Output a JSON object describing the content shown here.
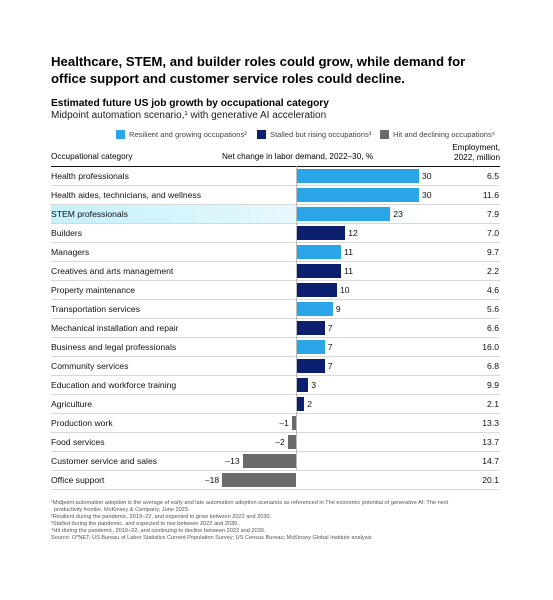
{
  "headline": "Healthcare, STEM, and builder roles could grow, while demand for office support and customer service roles could decline.",
  "subtitle": "Estimated future US job growth by occupational category",
  "subtitle2": "Midpoint automation scenario,¹ with generative AI acceleration",
  "legend": [
    {
      "label": "Resilient and growing occupations²",
      "color": "#2aa6e8"
    },
    {
      "label": "Stalled but rising occupations³",
      "color": "#0b1f6e"
    },
    {
      "label": "Hit and declining occupations⁴",
      "color": "#6a6a6a"
    }
  ],
  "headers": {
    "category": "Occupational category",
    "net_change": "Net change in labor demand, 2022–30, %",
    "employment_line1": "Employment,",
    "employment_line2": "2022, million"
  },
  "highlight": "STEM professionals",
  "chart_data": {
    "type": "bar",
    "orientation": "horizontal",
    "x_range": [
      -18,
      30
    ],
    "categories": [
      "Health professionals",
      "Health aides, technicians, and wellness",
      "STEM professionals",
      "Builders",
      "Managers",
      "Creatives and arts management",
      "Property maintenance",
      "Transportation services",
      "Mechanical installation and repair",
      "Business and legal professionals",
      "Community services",
      "Education and workforce training",
      "Agriculture",
      "Production work",
      "Food services",
      "Customer service and sales",
      "Office support"
    ],
    "values": [
      30,
      30,
      23,
      12,
      11,
      11,
      10,
      9,
      7,
      7,
      7,
      3,
      2,
      -1,
      -2,
      -13,
      -18
    ],
    "value_labels": [
      "30",
      "30",
      "23",
      "12",
      "11",
      "11",
      "10",
      "9",
      "7",
      "7",
      "7",
      "3",
      "2",
      "–1",
      "–2",
      "–13",
      "–18"
    ],
    "groups": [
      "resilient",
      "resilient",
      "resilient",
      "stalled",
      "resilient",
      "stalled",
      "stalled",
      "resilient",
      "stalled",
      "resilient",
      "stalled",
      "stalled",
      "stalled",
      "declining",
      "declining",
      "declining",
      "declining"
    ],
    "group_colors": {
      "resilient": "#2aa6e8",
      "stalled": "#0b1f6e",
      "declining": "#6a6a6a"
    },
    "employment_2022_million": [
      "6.5",
      "11.6",
      "7.9",
      "7.0",
      "9.7",
      "2.2",
      "4.6",
      "5.6",
      "6.6",
      "16.0",
      "6.8",
      "9.9",
      "2.1",
      "13.3",
      "13.7",
      "14.7",
      "20.1"
    ]
  },
  "footnotes": [
    "¹Midpoint automation adoption is the average of early and late automation adoption scenarios as referenced in The economic potential of generative AI: The next",
    "productivity frontier, McKinsey & Company, June 2023.",
    "²Resilient during the pandemic, 2019–22, and expected to grow between 2022 and 2030.",
    "³Stalled during the pandemic, and expected to rise between 2022 and 2030.",
    "⁴Hit during the pandemic, 2019–22, and continuing to decline between 2022 and 2030.",
    "Source: O*NET; US Bureau of Labor Statistics Current Population Survey; US Census Bureau; McKinsey Global Institute analysis"
  ]
}
